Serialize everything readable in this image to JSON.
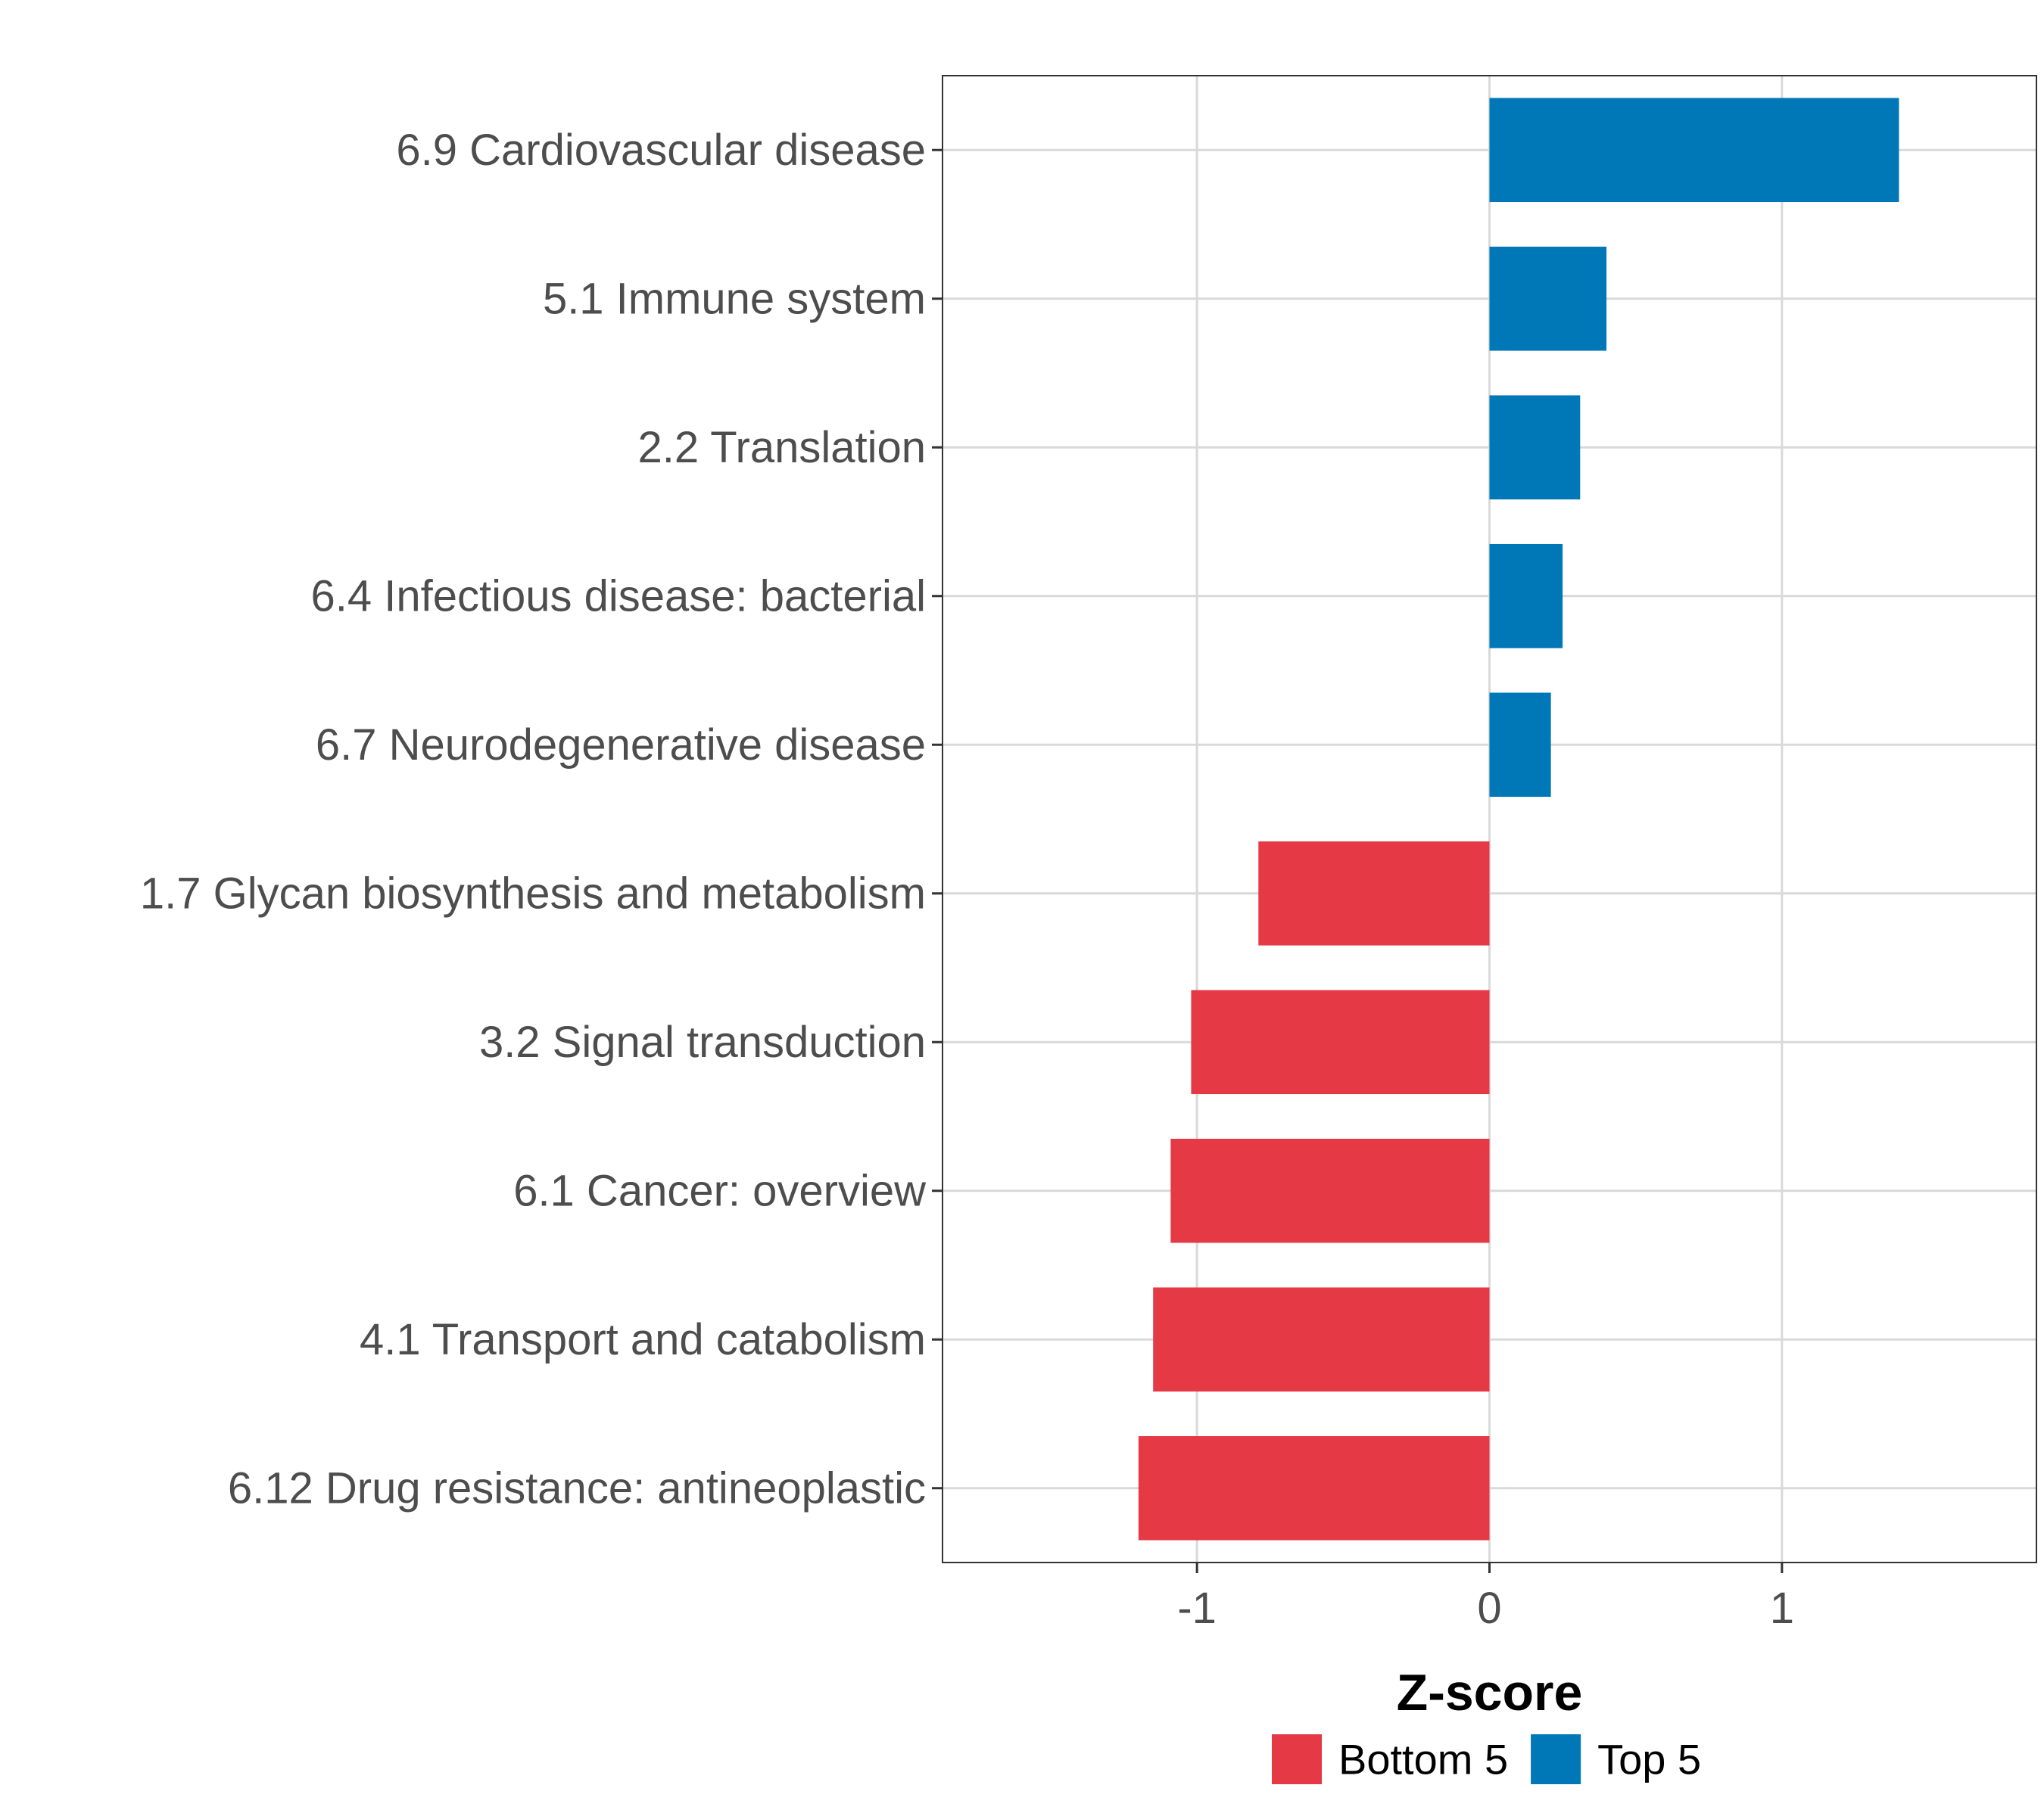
{
  "chart_data": {
    "type": "bar",
    "orientation": "horizontal",
    "categories": [
      "6.9 Cardiovascular disease",
      "5.1 Immune system",
      "2.2 Translation",
      "6.4 Infectious disease: bacterial",
      "6.7 Neurodegenerative disease",
      "1.7 Glycan biosynthesis and metabolism",
      "3.2 Signal transduction",
      "6.1 Cancer: overview",
      "4.1 Transport and catabolism",
      "6.12 Drug resistance: antineoplastic"
    ],
    "values": [
      1.4,
      0.4,
      0.31,
      0.25,
      0.21,
      -0.79,
      -1.02,
      -1.09,
      -1.15,
      -1.2
    ],
    "groups": [
      "Top 5",
      "Top 5",
      "Top 5",
      "Top 5",
      "Top 5",
      "Bottom 5",
      "Bottom 5",
      "Bottom 5",
      "Bottom 5",
      "Bottom 5"
    ],
    "xlabel": "Z-score",
    "ylabel": "",
    "xlim": [
      -1.87,
      1.87
    ],
    "xticks": [
      -1,
      0,
      1
    ],
    "xtick_labels": [
      "-1",
      "0",
      "1"
    ],
    "grid": true,
    "legend": {
      "position": "bottom",
      "entries": [
        {
          "label": "Bottom 5",
          "color": "#E63946"
        },
        {
          "label": "Top 5",
          "color": "#0077B6"
        }
      ]
    },
    "colors": {
      "Top 5": "#0077B6",
      "Bottom 5": "#E63946",
      "grid": "#D9D9D9",
      "text": "#4D4D4D",
      "axis_title": "#000000",
      "border": "#333333"
    }
  }
}
